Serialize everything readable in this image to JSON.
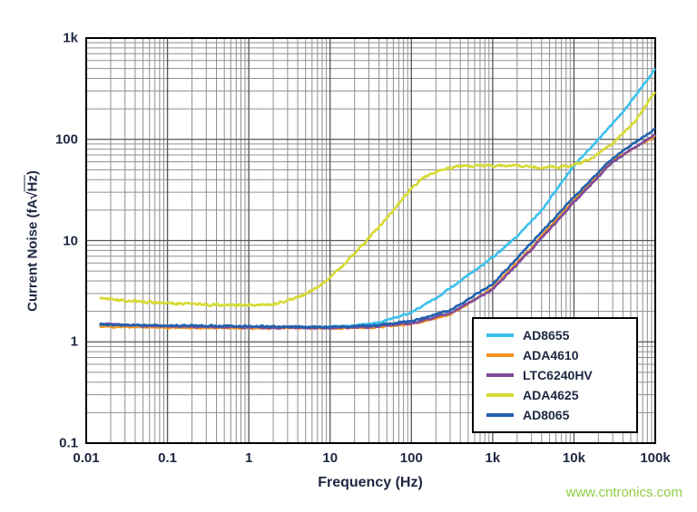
{
  "watermark": {
    "text": "www.cntronics.com",
    "color": "#8fce44"
  },
  "chart_data": {
    "type": "line",
    "title": "",
    "xlabel": "Frequency (Hz)",
    "ylabel_prefix": "Current Noise (fA",
    "ylabel_sqrt": "√",
    "ylabel_overline": "Hz",
    "ylabel_suffix": ")",
    "x_scale": "log",
    "y_scale": "log",
    "xlim": [
      0.01,
      100000
    ],
    "ylim": [
      0.1,
      1000
    ],
    "grid": "log major and minor gridlines, dark gray, on",
    "legend_position": "inside bottom-right",
    "x_ticks": [
      {
        "v": 0.01,
        "label": "0.01"
      },
      {
        "v": 0.1,
        "label": "0.1"
      },
      {
        "v": 1,
        "label": "1"
      },
      {
        "v": 10,
        "label": "10"
      },
      {
        "v": 100,
        "label": "100"
      },
      {
        "v": 1000,
        "label": "1k"
      },
      {
        "v": 10000,
        "label": "10k"
      },
      {
        "v": 100000,
        "label": "100k"
      }
    ],
    "y_ticks": [
      {
        "v": 0.1,
        "label": "0.1"
      },
      {
        "v": 1,
        "label": "1"
      },
      {
        "v": 10,
        "label": "10"
      },
      {
        "v": 100,
        "label": "100"
      },
      {
        "v": 1000,
        "label": "1k"
      }
    ],
    "series": [
      {
        "name": "AD8655",
        "color": "#3bc1ef",
        "noise": 0.011,
        "points": [
          [
            0.015,
            1.45
          ],
          [
            0.03,
            1.42
          ],
          [
            0.1,
            1.4
          ],
          [
            0.3,
            1.38
          ],
          [
            1,
            1.38
          ],
          [
            3,
            1.39
          ],
          [
            10,
            1.4
          ],
          [
            20,
            1.45
          ],
          [
            40,
            1.55
          ],
          [
            100,
            1.95
          ],
          [
            200,
            2.7
          ],
          [
            400,
            4.0
          ],
          [
            1000,
            6.8
          ],
          [
            2000,
            11
          ],
          [
            4000,
            20
          ],
          [
            10000,
            55
          ],
          [
            20000,
            100
          ],
          [
            40000,
            185
          ],
          [
            100000,
            500
          ]
        ]
      },
      {
        "name": "ADA4610",
        "color": "#f7941e",
        "noise": 0.011,
        "points": [
          [
            0.015,
            1.42
          ],
          [
            0.1,
            1.38
          ],
          [
            1,
            1.36
          ],
          [
            10,
            1.36
          ],
          [
            30,
            1.38
          ],
          [
            100,
            1.5
          ],
          [
            300,
            1.85
          ],
          [
            1000,
            3.4
          ],
          [
            3000,
            8.5
          ],
          [
            10000,
            25
          ],
          [
            30000,
            62
          ],
          [
            100000,
            108
          ]
        ]
      },
      {
        "name": "LTC6240HV",
        "color": "#7e4b9a",
        "noise": 0.011,
        "points": [
          [
            0.015,
            1.5
          ],
          [
            0.05,
            1.44
          ],
          [
            0.1,
            1.42
          ],
          [
            1,
            1.39
          ],
          [
            10,
            1.37
          ],
          [
            30,
            1.4
          ],
          [
            100,
            1.52
          ],
          [
            300,
            1.9
          ],
          [
            1000,
            3.3
          ],
          [
            3000,
            8.2
          ],
          [
            10000,
            24
          ],
          [
            30000,
            60
          ],
          [
            100000,
            112
          ]
        ]
      },
      {
        "name": "ADA4625",
        "color": "#d6da33",
        "noise": 0.016,
        "points": [
          [
            0.015,
            2.7
          ],
          [
            0.03,
            2.55
          ],
          [
            0.07,
            2.45
          ],
          [
            0.15,
            2.38
          ],
          [
            0.4,
            2.32
          ],
          [
            1,
            2.3
          ],
          [
            2,
            2.38
          ],
          [
            3,
            2.55
          ],
          [
            5,
            2.95
          ],
          [
            8,
            3.7
          ],
          [
            15,
            5.8
          ],
          [
            30,
            10.5
          ],
          [
            60,
            20
          ],
          [
            100,
            33
          ],
          [
            150,
            43
          ],
          [
            250,
            51
          ],
          [
            400,
            54
          ],
          [
            700,
            55
          ],
          [
            1000,
            55.5
          ],
          [
            2000,
            54.5
          ],
          [
            4000,
            53
          ],
          [
            7000,
            53.5
          ],
          [
            10000,
            56
          ],
          [
            15000,
            62
          ],
          [
            30000,
            90
          ],
          [
            60000,
            160
          ],
          [
            100000,
            295
          ]
        ]
      },
      {
        "name": "AD8065",
        "color": "#2061ae",
        "noise": 0.011,
        "points": [
          [
            0.015,
            1.48
          ],
          [
            0.1,
            1.45
          ],
          [
            1,
            1.43
          ],
          [
            10,
            1.4
          ],
          [
            30,
            1.45
          ],
          [
            100,
            1.6
          ],
          [
            300,
            2.05
          ],
          [
            1000,
            3.7
          ],
          [
            3000,
            9.5
          ],
          [
            10000,
            27
          ],
          [
            30000,
            65
          ],
          [
            100000,
            128
          ]
        ]
      }
    ]
  }
}
